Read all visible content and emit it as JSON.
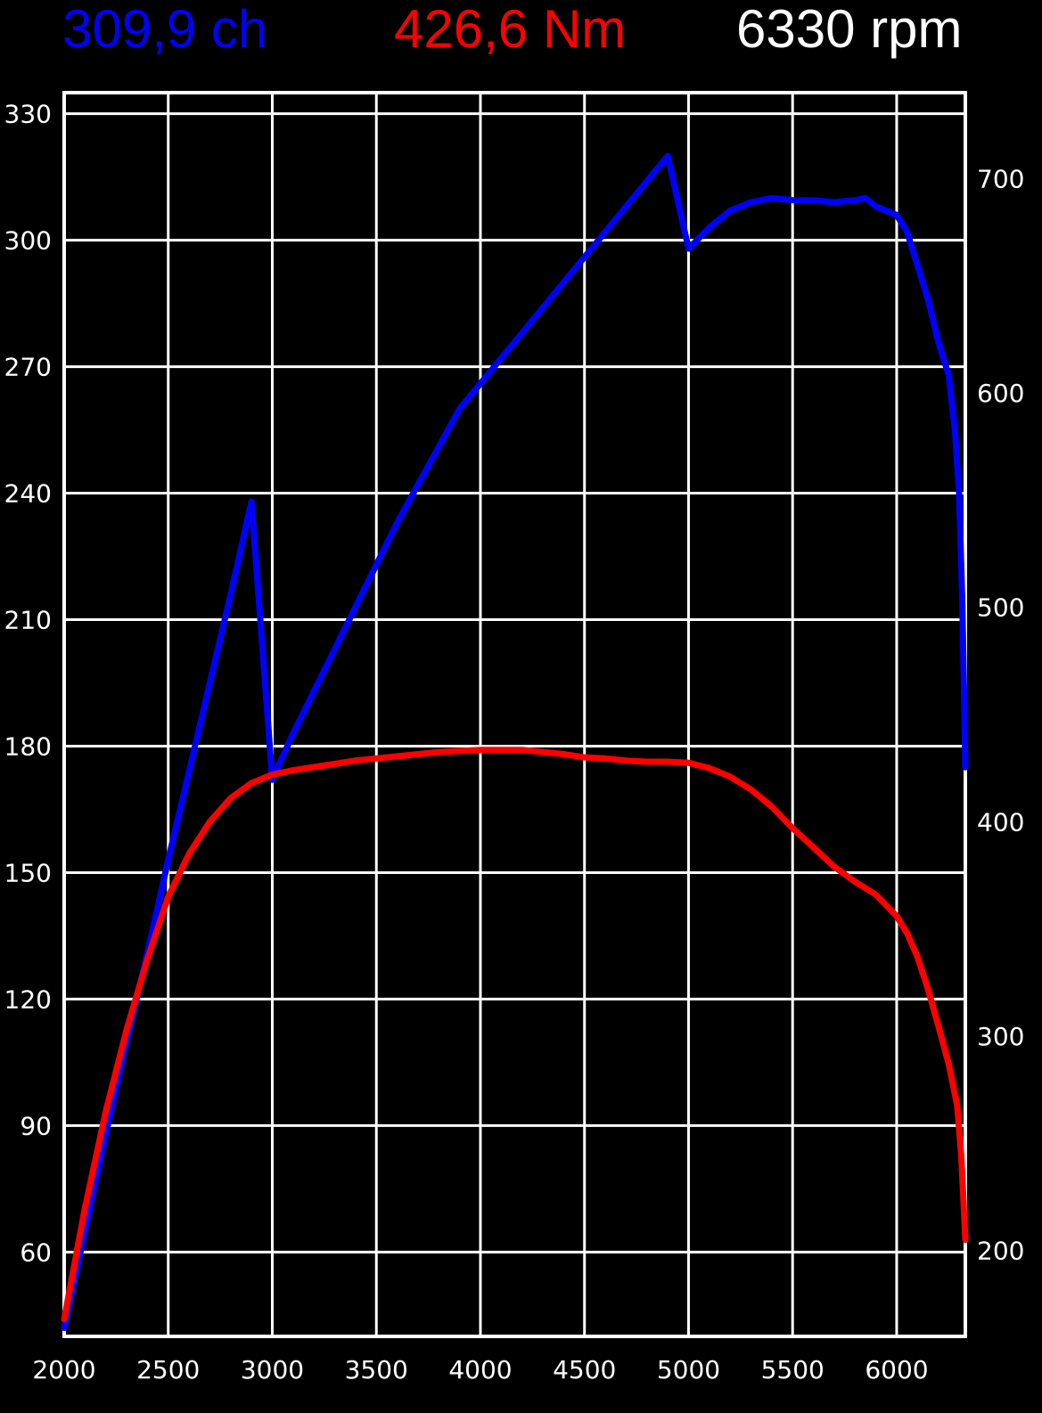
{
  "header": {
    "power_text": "309,9 ch",
    "torque_text": "426,6 Nm",
    "rpm_text": "6330 rpm"
  },
  "colors": {
    "background": "#000000",
    "grid": "#ffffff",
    "power": "#0000ff",
    "torque": "#ff0000",
    "rpm": "#ffffff"
  },
  "chart_data": {
    "type": "line",
    "title": "",
    "xlabel": "",
    "ylabel": "",
    "xlim": [
      2000,
      6330
    ],
    "ylim_left": [
      40,
      335
    ],
    "ylim_right": [
      160,
      740
    ],
    "x_ticks": [
      "2000",
      "2500",
      "3000",
      "3500",
      "4000",
      "4500",
      "5000",
      "5500",
      "6000"
    ],
    "y_ticks_left": [
      "330",
      "300",
      "270",
      "240",
      "210",
      "180",
      "150",
      "120",
      "90",
      "60"
    ],
    "y_ticks_right": [
      "700",
      "600",
      "500",
      "400",
      "300",
      "200"
    ],
    "grid": true,
    "legend": "none",
    "series": [
      {
        "axis": "left",
        "color": "#0000ff",
        "x": [
          2000,
          2100,
          2200,
          2300,
          2400,
          2500,
          2600,
          2700,
          2800,
          2900,
          3000,
          3100,
          3200,
          3300,
          3400,
          3500,
          3600,
          3700,
          3800,
          3900,
          4000,
          4100,
          4200,
          4300,
          4400,
          4500,
          4600,
          4700,
          4800,
          4900,
          5000,
          5100,
          5200,
          5300,
          5400,
          5500,
          5600,
          5700,
          5800,
          5850,
          5900,
          6000,
          6050,
          6100,
          6150,
          6200,
          6250,
          6280,
          6300,
          6315,
          6325,
          6330
        ],
        "y": [
          42,
          65,
          88,
          110,
          131,
          153,
          174,
          195,
          216,
          238,
          172,
          183,
          193,
          203,
          213,
          223,
          233,
          242,
          251,
          260,
          266,
          272,
          278,
          284,
          290,
          296,
          302,
          308,
          314,
          320,
          298,
          303,
          307,
          309,
          310,
          309.5,
          309.5,
          309,
          309.5,
          310,
          308,
          306,
          302,
          294,
          286,
          276,
          268,
          255,
          240,
          215,
          190,
          175
        ]
      },
      {
        "axis": "right",
        "color": "#ff0000",
        "x": [
          2000,
          2100,
          2200,
          2300,
          2400,
          2500,
          2600,
          2700,
          2800,
          2900,
          3000,
          3100,
          3200,
          3300,
          3400,
          3500,
          3600,
          3700,
          3800,
          3900,
          4000,
          4100,
          4200,
          4300,
          4400,
          4500,
          4600,
          4700,
          4800,
          4900,
          5000,
          5100,
          5200,
          5300,
          5400,
          5500,
          5600,
          5700,
          5800,
          5900,
          6000,
          6050,
          6100,
          6150,
          6200,
          6250,
          6290,
          6310,
          6320,
          6330
        ],
        "y": [
          168,
          220,
          265,
          303,
          336,
          365,
          385,
          400,
          411,
          418,
          422,
          424,
          425.5,
          427,
          428.5,
          429.5,
          430.5,
          431.5,
          432.5,
          433,
          433.5,
          433.5,
          433.5,
          432.5,
          431.5,
          430,
          429.5,
          428.5,
          428,
          428,
          427.5,
          425,
          421,
          415,
          407,
          397,
          388,
          379,
          372,
          366,
          356,
          348,
          337,
          322,
          305,
          287,
          268,
          245,
          225,
          205
        ]
      }
    ]
  }
}
